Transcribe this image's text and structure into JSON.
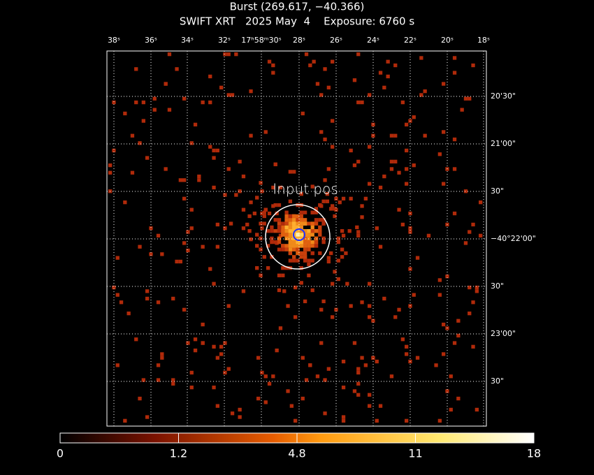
{
  "header": {
    "title": "Burst (269.617, −40.366)",
    "subtitle": "SWIFT XRT   2025 May  4    Exposure: 6760 s"
  },
  "ra_labels": [
    "38ˢ",
    "36ˢ",
    "34ˢ",
    "32ˢ",
    "17ʰ58ᵐ30ˢ",
    "28ˢ",
    "26ˢ",
    "24ˢ",
    "22ˢ",
    "20ˢ",
    "18ˢ"
  ],
  "dec_labels": [
    "20'30\"",
    "21'00\"",
    "30\"",
    "−40°22'00\"",
    "30\"",
    "23'00\"",
    "30\""
  ],
  "annotation": "Input pos",
  "colorbar": {
    "labels": [
      "0",
      "1.2",
      "4.8",
      "11",
      "18"
    ]
  }
}
